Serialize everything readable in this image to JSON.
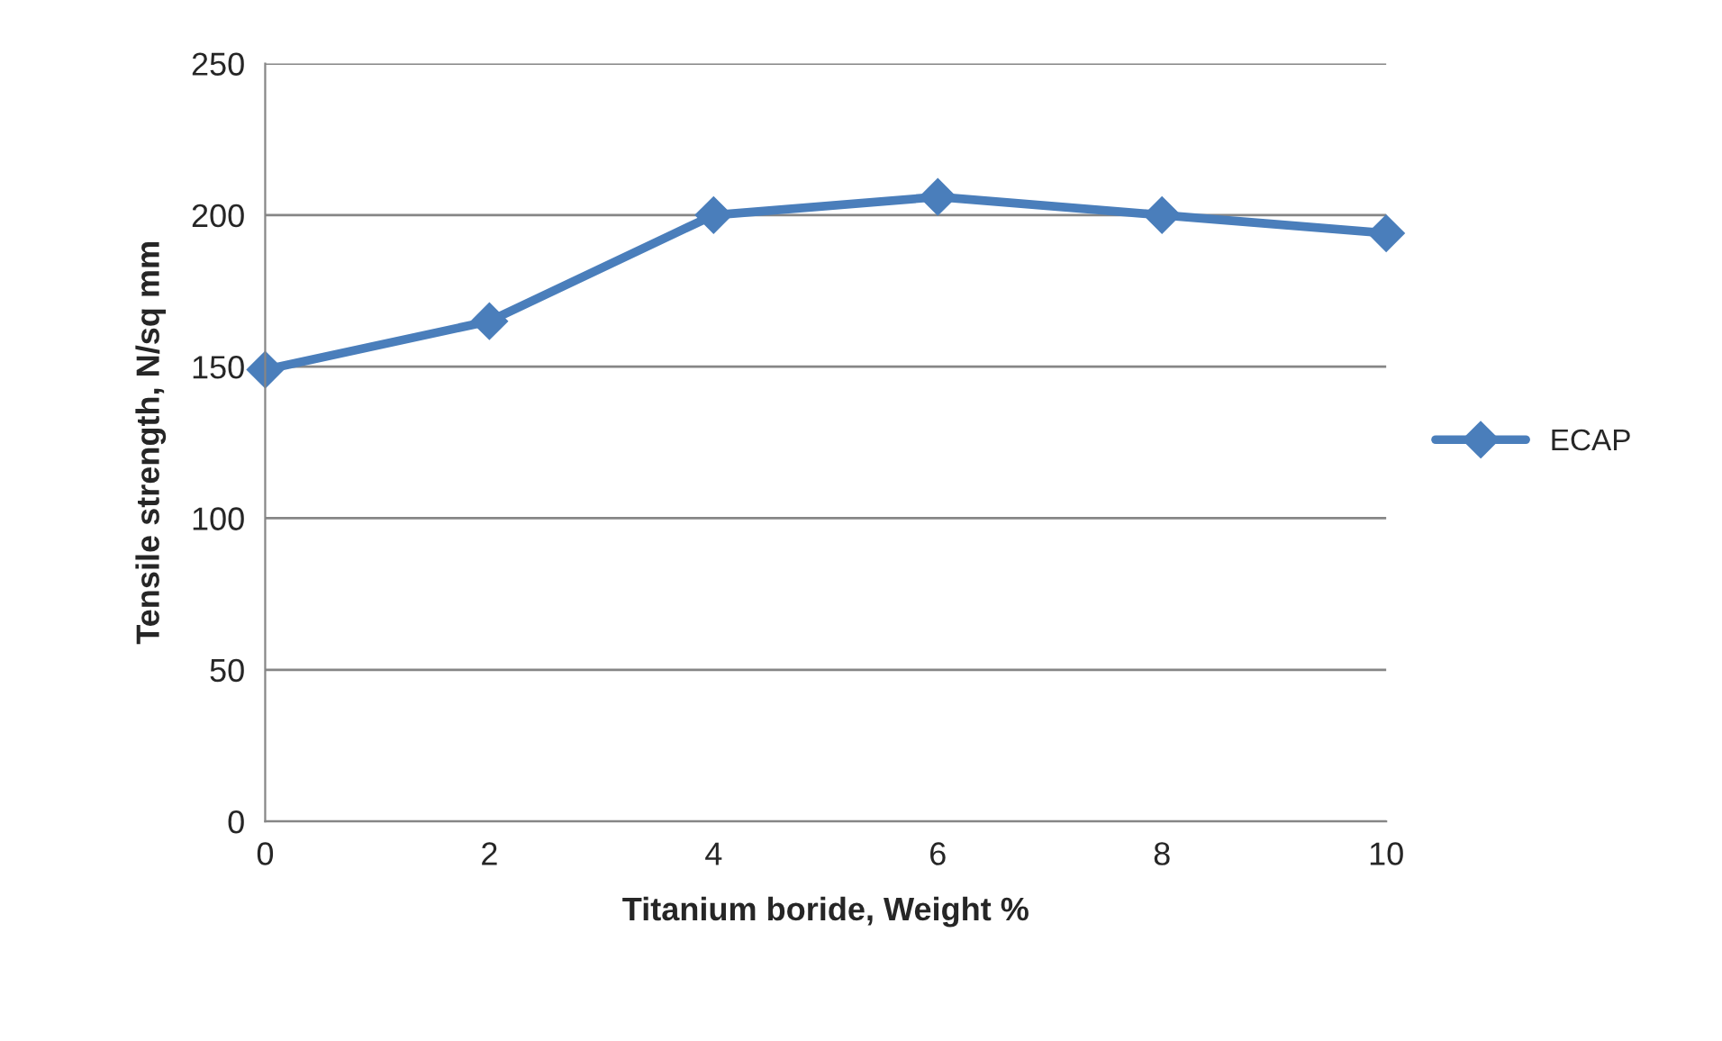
{
  "chart_data": {
    "type": "line",
    "xlabel": "Titanium boride, Weight %",
    "ylabel": "Tensile strength, N/sq mm",
    "x": [
      0,
      2,
      4,
      6,
      8,
      10
    ],
    "series": [
      {
        "name": "ECAP",
        "color": "#4a7ebb",
        "values": [
          149,
          165,
          200,
          206,
          200,
          194
        ]
      }
    ],
    "xlim": [
      0,
      10
    ],
    "xticks": [
      0,
      2,
      4,
      6,
      8,
      10
    ],
    "ylim": [
      0,
      250
    ],
    "yticks": [
      0,
      50,
      100,
      150,
      200,
      250
    ],
    "grid": "y",
    "legend": "right",
    "marker": "diamond",
    "line_style": "solid"
  }
}
